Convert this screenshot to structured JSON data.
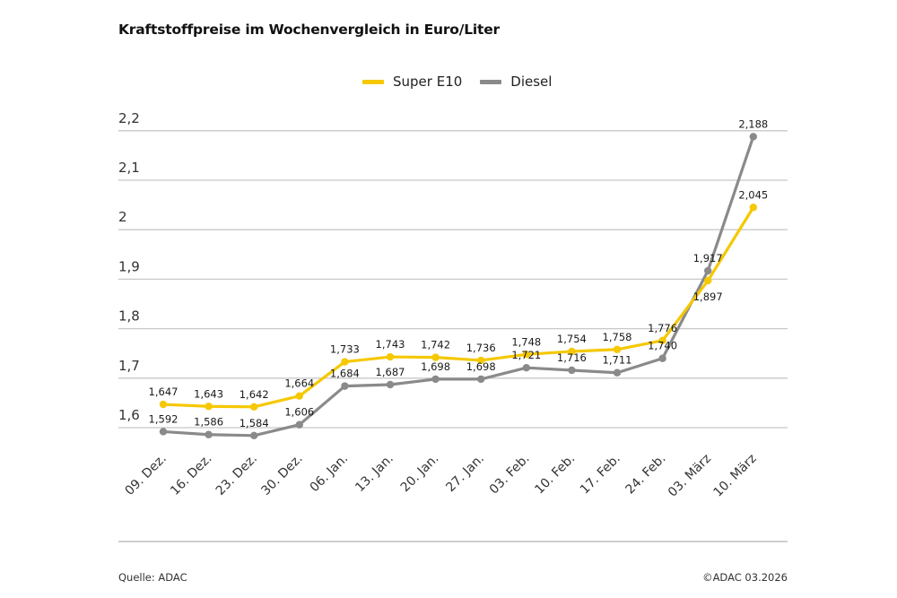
{
  "chart_data": {
    "type": "line",
    "title": "Kraftstoffpreise im Wochenvergleich in Euro/Liter",
    "xlabel": "",
    "ylabel": "Euro/Liter",
    "ylim": [
      1.6,
      2.2
    ],
    "yticks": [
      "1,6",
      "1,7",
      "1,8",
      "1,9",
      "2",
      "2,1",
      "2,2"
    ],
    "grid": true,
    "legend_position": "top",
    "categories": [
      "09. Dez.",
      "16. Dez.",
      "23. Dez.",
      "30. Dez.",
      "06. Jan.",
      "13. Jan.",
      "20. Jan.",
      "27. Jan.",
      "03. Feb.",
      "10. Feb.",
      "17. Feb.",
      "24. Feb.",
      "03. März",
      "10. März"
    ],
    "series": [
      {
        "name": "Super E10",
        "color": "#f5c800",
        "values": [
          1.647,
          1.643,
          1.642,
          1.664,
          1.733,
          1.743,
          1.742,
          1.736,
          1.748,
          1.754,
          1.758,
          1.776,
          1.897,
          2.045
        ],
        "labels": [
          "1,647",
          "1,643",
          "1,642",
          "1,664",
          "1,733",
          "1,743",
          "1,742",
          "1,736",
          "1,748",
          "1,754",
          "1,758",
          "1,776",
          "1,897",
          "2,045"
        ]
      },
      {
        "name": "Diesel",
        "color": "#8a8a8a",
        "values": [
          1.592,
          1.586,
          1.584,
          1.606,
          1.684,
          1.687,
          1.698,
          1.698,
          1.721,
          1.716,
          1.711,
          1.74,
          1.917,
          2.188
        ],
        "labels": [
          "1,592",
          "1,586",
          "1,584",
          "1,606",
          "1,684",
          "1,687",
          "1,698",
          "1,698",
          "1,721",
          "1,716",
          "1,711",
          "1,740",
          "1,917",
          "2,188"
        ]
      }
    ]
  },
  "header": {
    "title": "Kraftstoffpreise im Wochenvergleich in Euro/Liter"
  },
  "legend": [
    {
      "label": "Super E10",
      "color": "#f5c800"
    },
    {
      "label": "Diesel",
      "color": "#8a8a8a"
    }
  ],
  "footer": {
    "source": "Quelle: ADAC",
    "copyright": "©ADAC 03.2026"
  }
}
